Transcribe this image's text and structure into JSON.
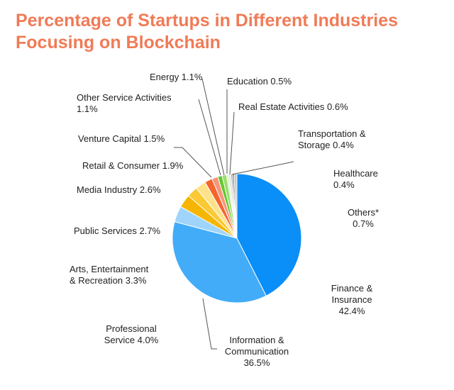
{
  "title": "Percentage of Startups in Different Industries Focusing on Blockchain",
  "chart_data": {
    "type": "pie",
    "title": "Percentage of Startups in Different Industries Focusing on Blockchain",
    "unit": "%",
    "slices": [
      {
        "name": "Finance & Insurance",
        "value": 42.4,
        "label_lines": [
          "Finance &",
          "Insurance",
          "42.4%"
        ],
        "color": "#0a8ef7"
      },
      {
        "name": "Information & Communication",
        "value": 36.5,
        "label_lines": [
          "Information &",
          "Communication",
          "36.5%"
        ],
        "color": "#42acf9"
      },
      {
        "name": "Professional Service",
        "value": 4.0,
        "label_lines": [
          "Professional",
          "Service 4.0%"
        ],
        "color": "#9fd4fb"
      },
      {
        "name": "Arts, Entertainment & Recreation",
        "value": 3.3,
        "label_lines": [
          "Arts, Entertainment",
          "& Recreation 3.3%"
        ],
        "color": "#f6b500"
      },
      {
        "name": "Public Services",
        "value": 2.7,
        "label_lines": [
          "Public Services 2.7%"
        ],
        "color": "#fac934"
      },
      {
        "name": "Media Industry",
        "value": 2.6,
        "label_lines": [
          "Media Industry 2.6%"
        ],
        "color": "#fde28c"
      },
      {
        "name": "Retail & Consumer",
        "value": 1.9,
        "label_lines": [
          "Retail & Consumer 1.9%"
        ],
        "color": "#f4652f"
      },
      {
        "name": "Venture Capital",
        "value": 1.5,
        "label_lines": [
          "Venture Capital 1.5%"
        ],
        "color": "#f7967a"
      },
      {
        "name": "Other Service Activities",
        "value": 1.1,
        "label_lines": [
          "Other Service Activities",
          "1.1%"
        ],
        "color": "#62c82f"
      },
      {
        "name": "Energy",
        "value": 1.1,
        "label_lines": [
          "Energy 1.1%"
        ],
        "color": "#9bde6e"
      },
      {
        "name": "Education",
        "value": 0.5,
        "label_lines": [
          "Education 0.5%"
        ],
        "color": "#d4f1b8"
      },
      {
        "name": "Real Estate Activities",
        "value": 0.6,
        "label_lines": [
          "Real Estate Activities 0.6%"
        ],
        "color": "#e3e3e3"
      },
      {
        "name": "Transportation & Storage",
        "value": 0.4,
        "label_lines": [
          "Transportation &",
          "Storage 0.4%"
        ],
        "color": "#9a9a9a"
      },
      {
        "name": "Healthcare",
        "value": 0.4,
        "label_lines": [
          "Healthcare",
          "0.4%"
        ],
        "color": "#6b6b6b"
      },
      {
        "name": "Others*",
        "value": 0.7,
        "label_lines": [
          "Others*",
          "0.7%"
        ],
        "color": "#c8c8c8"
      }
    ]
  }
}
